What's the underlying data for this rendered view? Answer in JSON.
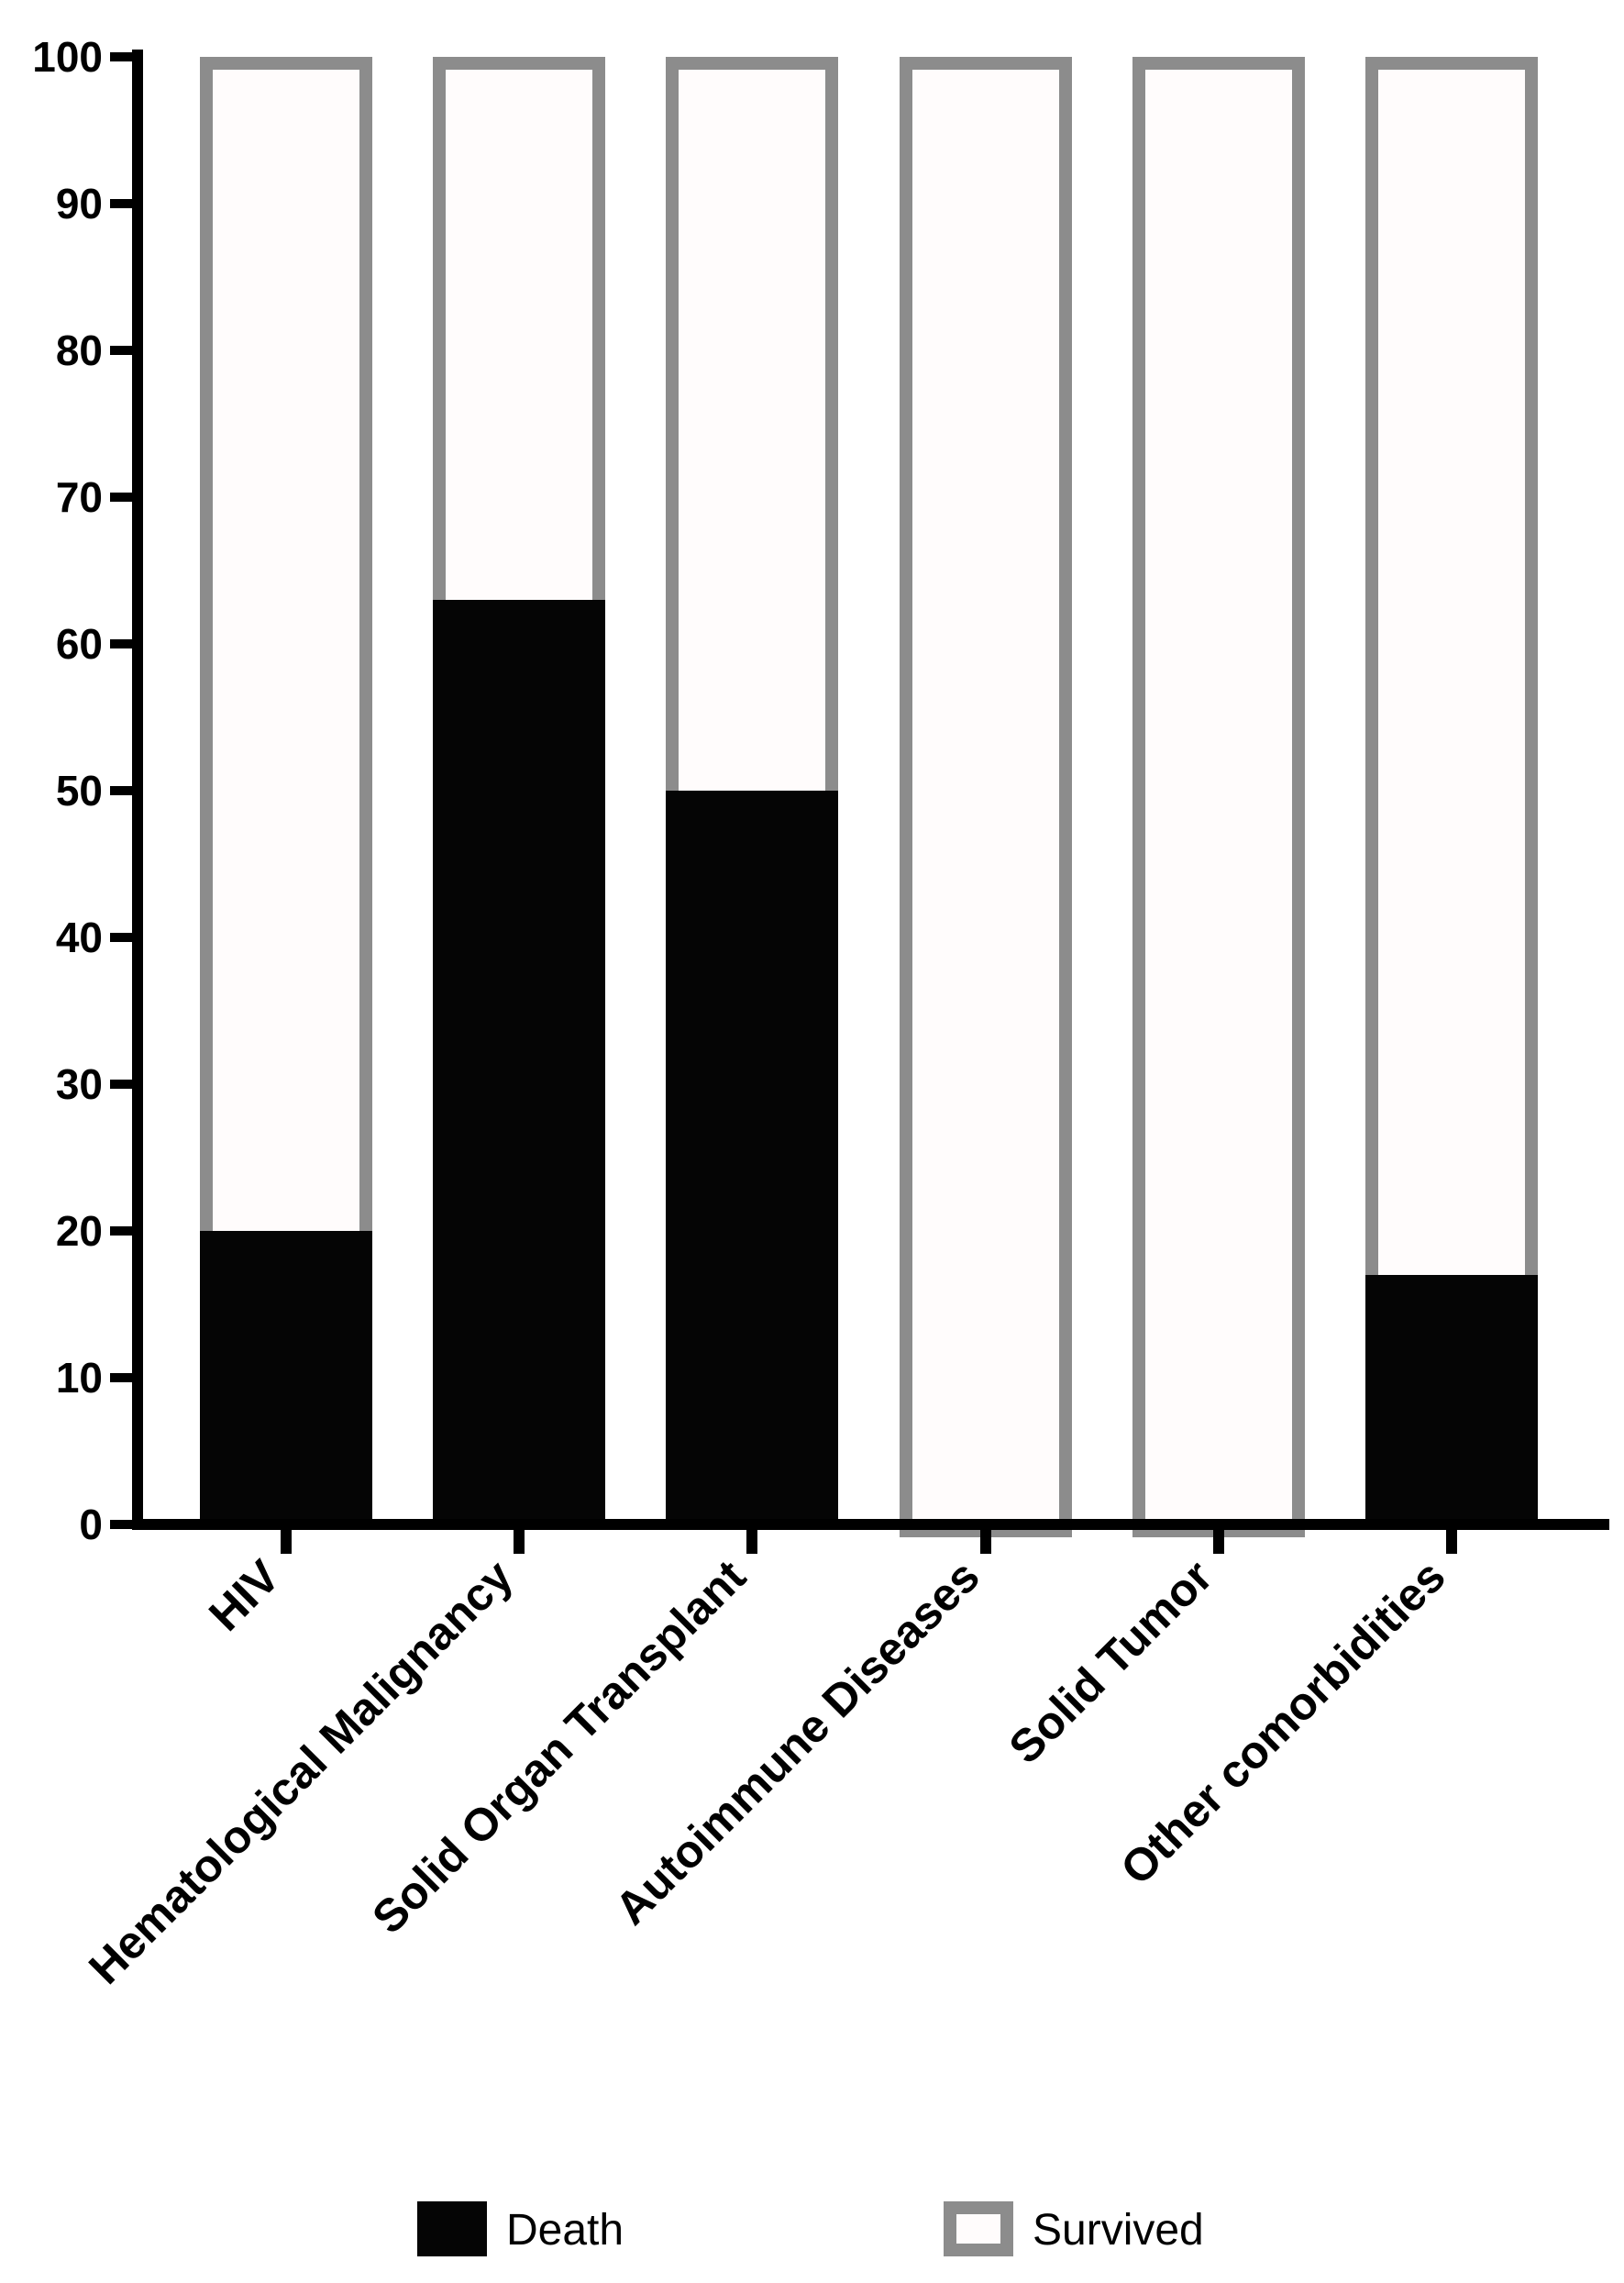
{
  "chart_data": {
    "type": "bar",
    "stacked": true,
    "title": "",
    "xlabel": "",
    "ylabel": "",
    "ylim": [
      0,
      100
    ],
    "yticks": [
      "0",
      "10",
      "20",
      "30",
      "40",
      "50",
      "60",
      "70",
      "80",
      "90",
      "100"
    ],
    "categories": [
      "HIV",
      "Hematological Malignancy",
      "Solid Organ Transplant",
      "Autoimmune Diseases",
      "Solid Tumor",
      "Other comorbidities"
    ],
    "series": [
      {
        "name": "Death",
        "values": [
          20,
          63,
          50,
          0,
          0,
          17
        ],
        "color": "#050505",
        "style": "filled"
      },
      {
        "name": "Survived",
        "values": [
          80,
          37,
          50,
          100,
          100,
          83
        ],
        "color": "#8c8c8c",
        "style": "outlined"
      }
    ],
    "legend": {
      "position": "bottom"
    },
    "grid": false
  }
}
